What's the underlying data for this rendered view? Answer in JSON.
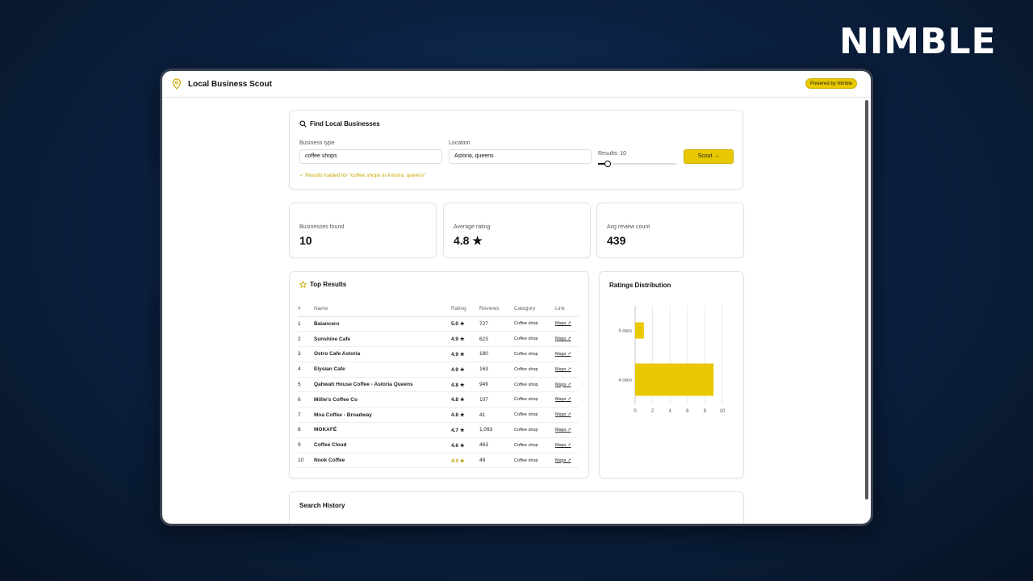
{
  "brand": {
    "logo_text": "NIMBLE"
  },
  "app": {
    "title": "Local Business Scout",
    "badge": "Powered by Nimble"
  },
  "search": {
    "title": "Find Local Businesses",
    "business_type_label": "Business type",
    "business_type_value": "coffee shops",
    "location_label": "Location",
    "location_value": "Astoria, queens",
    "results_label": "Results: 10",
    "results_level": 0.12,
    "scout_label": "Scout →",
    "status": "✓ Results loaded for \"coffee shops in Astoria, queens\""
  },
  "stats": [
    {
      "label": "Businesses found",
      "value": "10"
    },
    {
      "label": "Average rating",
      "value": "4.8 ★"
    },
    {
      "label": "Avg review count",
      "value": "439"
    }
  ],
  "top_results": {
    "title": "Top Results",
    "columns": [
      "#",
      "Name",
      "Rating",
      "Reviews",
      "Category",
      "Link"
    ],
    "rows": [
      {
        "num": "1",
        "name": "Baiancero",
        "rating": "5.0 ★",
        "reviews": "727",
        "category": "Coffee shop",
        "link": "Maps ↗"
      },
      {
        "num": "2",
        "name": "Sunshine Cafe",
        "rating": "4.9 ★",
        "reviews": "623",
        "category": "Coffee shop",
        "link": "Maps ↗"
      },
      {
        "num": "3",
        "name": "Ostro Cafe Astoria",
        "rating": "4.9 ★",
        "reviews": "180",
        "category": "Coffee shop",
        "link": "Maps ↗"
      },
      {
        "num": "4",
        "name": "Elysian Cafe",
        "rating": "4.9 ★",
        "reviews": "163",
        "category": "Coffee shop",
        "link": "Maps ↗"
      },
      {
        "num": "5",
        "name": "Qahwah House Coffee - Astoria Queens",
        "rating": "4.8 ★",
        "reviews": "949",
        "category": "Coffee shop",
        "link": "Maps ↗"
      },
      {
        "num": "6",
        "name": "Millie's Coffee Co",
        "rating": "4.8 ★",
        "reviews": "107",
        "category": "Coffee shop",
        "link": "Maps ↗"
      },
      {
        "num": "7",
        "name": "Moa Coffee - Broadway",
        "rating": "4.8 ★",
        "reviews": "41",
        "category": "Coffee shop",
        "link": "Maps ↗"
      },
      {
        "num": "8",
        "name": "MOKAFÉ",
        "rating": "4.7 ★",
        "reviews": "1,093",
        "category": "Coffee shop",
        "link": "Maps ↗"
      },
      {
        "num": "9",
        "name": "Coffee Cloud",
        "rating": "4.6 ★",
        "reviews": "463",
        "category": "Coffee shop",
        "link": "Maps ↗"
      },
      {
        "num": "10",
        "name": "Nook Coffee",
        "rating": "4.4 ★",
        "reviews": "49",
        "category": "Coffee shop",
        "link": "Maps ↗"
      }
    ]
  },
  "history": {
    "title": "Search History"
  },
  "colors": {
    "accent": "#e8c800",
    "rating_green": "#3a9a3a",
    "background": "#0b2142"
  },
  "chart_data": {
    "type": "bar",
    "orientation": "horizontal",
    "title": "Ratings Distribution",
    "categories": [
      "5 stars",
      "4 stars"
    ],
    "values": [
      1,
      9
    ],
    "xlim": [
      0,
      10
    ],
    "xticks": [
      0,
      2,
      4,
      6,
      8,
      10
    ],
    "grid": true,
    "color": "#e8c800"
  }
}
